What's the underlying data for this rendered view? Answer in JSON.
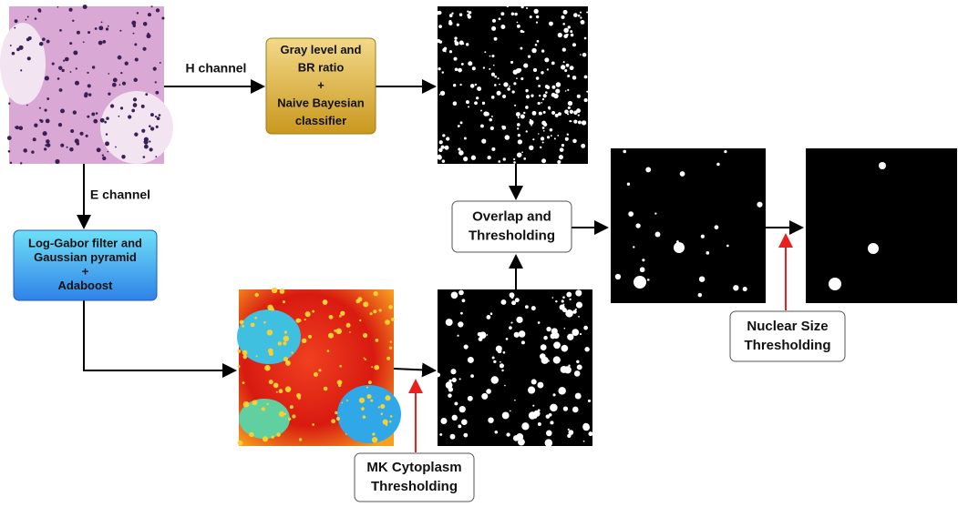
{
  "edges": [
    "H channel",
    "E channel"
  ],
  "nodes": [
    {
      "lines": [
        "Gray level and",
        "BR ratio",
        "+",
        "Naive Bayesian",
        "classifier"
      ]
    },
    {
      "lines": [
        "Log-Gabor filter and",
        "Gaussian pyramid",
        "+",
        "Adaboost"
      ]
    },
    {
      "lines": [
        "Overlap and",
        "Thresholding"
      ]
    },
    {
      "lines": [
        "MK Cytoplasm",
        "Thresholding"
      ]
    },
    {
      "lines": [
        "Nuclear Size",
        "Thresholding"
      ]
    }
  ]
}
